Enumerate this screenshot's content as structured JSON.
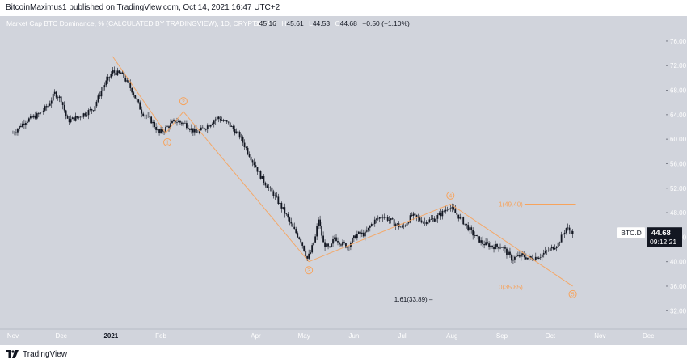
{
  "header": {
    "publish_line": "BitcoinMaximus1 published on TradingView.com, Oct 14, 2021 16:47 UTC+2"
  },
  "legend": {
    "title": "Market Cap BTC Dominance, % (CALCULATED BY TRADINGVIEW), 1D, CRYPTOCAP",
    "open_label": "O",
    "open": "45.16",
    "high_label": "H",
    "high": "45.61",
    "low_label": "L",
    "low": "44.53",
    "close_label": "C",
    "close": "44.68",
    "change": "−0.50 (−1.10%)"
  },
  "footer": {
    "brand": "TradingView"
  },
  "colors": {
    "background": "#d1d4dc",
    "candle": "#131722",
    "wave": "#f7a35c",
    "label_bg": "#131722"
  },
  "chart_data": {
    "type": "candlestick",
    "symbol": "BTC.D",
    "unit": "%",
    "ylim": [
      29.0,
      78.5
    ],
    "y_ticks": [
      "76.00",
      "72.00",
      "68.00",
      "64.00",
      "60.00",
      "56.00",
      "52.00",
      "48.00",
      "44.00",
      "40.00",
      "36.00",
      "32.00"
    ],
    "x_ticks": [
      "Nov",
      "Dec",
      "2021",
      "Feb",
      "Apr",
      "May",
      "Jun",
      "Jul",
      "Aug",
      "Sep",
      "Oct",
      "Nov",
      "Dec"
    ],
    "x_tick_days": [
      0,
      30,
      61,
      92,
      151,
      181,
      212,
      242,
      273,
      304,
      334,
      365,
      395
    ],
    "x_range_days": [
      -4,
      406
    ],
    "price_trace": [
      [
        0,
        61.0
      ],
      [
        8,
        63.0
      ],
      [
        16,
        64.0
      ],
      [
        22,
        65.5
      ],
      [
        26,
        67.5
      ],
      [
        30,
        66.5
      ],
      [
        34,
        63.0
      ],
      [
        40,
        63.5
      ],
      [
        50,
        65.0
      ],
      [
        56,
        68.5
      ],
      [
        62,
        71.0
      ],
      [
        68,
        70.5
      ],
      [
        74,
        68.0
      ],
      [
        80,
        64.5
      ],
      [
        86,
        63.0
      ],
      [
        91,
        61.0
      ],
      [
        96,
        62.0
      ],
      [
        101,
        63.0
      ],
      [
        107,
        62.5
      ],
      [
        114,
        61.0
      ],
      [
        120,
        62.0
      ],
      [
        127,
        63.5
      ],
      [
        134,
        62.5
      ],
      [
        141,
        60.5
      ],
      [
        148,
        57.0
      ],
      [
        155,
        53.5
      ],
      [
        162,
        51.0
      ],
      [
        168,
        48.5
      ],
      [
        174,
        45.5
      ],
      [
        179,
        43.5
      ],
      [
        183,
        40.5
      ],
      [
        185,
        41.5
      ],
      [
        188,
        44.0
      ],
      [
        190,
        47.0
      ],
      [
        193,
        43.0
      ],
      [
        197,
        42.0
      ],
      [
        200,
        44.0
      ],
      [
        204,
        43.0
      ],
      [
        208,
        42.5
      ],
      [
        214,
        44.5
      ],
      [
        219,
        44.5
      ],
      [
        224,
        46.5
      ],
      [
        230,
        47.5
      ],
      [
        236,
        46.5
      ],
      [
        242,
        45.5
      ],
      [
        248,
        47.5
      ],
      [
        256,
        46.5
      ],
      [
        262,
        47.0
      ],
      [
        267,
        48.0
      ],
      [
        271,
        49.0
      ],
      [
        275,
        48.0
      ],
      [
        280,
        46.5
      ],
      [
        286,
        44.5
      ],
      [
        292,
        43.0
      ],
      [
        298,
        42.5
      ],
      [
        304,
        42.5
      ],
      [
        310,
        40.5
      ],
      [
        316,
        41.0
      ],
      [
        322,
        40.5
      ],
      [
        328,
        41.0
      ],
      [
        334,
        42.0
      ],
      [
        339,
        43.0
      ],
      [
        344,
        45.5
      ],
      [
        348,
        44.7
      ]
    ],
    "wave_path": [
      [
        62,
        73.5
      ],
      [
        95,
        61.0
      ],
      [
        106,
        64.5
      ],
      [
        184,
        40.0
      ],
      [
        272,
        49.4
      ],
      [
        348,
        36.0
      ]
    ],
    "wave_labels": [
      {
        "label": "1",
        "day": 96,
        "price": 59.5
      },
      {
        "label": "2",
        "day": 106,
        "price": 66.2
      },
      {
        "label": "3",
        "day": 184,
        "price": 38.6
      },
      {
        "label": "4",
        "day": 272,
        "price": 50.8
      },
      {
        "label": "5",
        "day": 348,
        "price": 34.7
      }
    ],
    "fib_levels": [
      {
        "text": "1(49.40)",
        "price": 49.4,
        "day_start": 318,
        "day_end": 350,
        "line": true
      },
      {
        "text": "0(35.85)",
        "price": 35.85,
        "day_start": 318,
        "day_end": 350,
        "line": false
      },
      {
        "text": "1.61(33.89) –",
        "price": 33.89,
        "day_start": 262,
        "day_end": 293,
        "line": false
      }
    ],
    "last_price": {
      "symbol": "BTC.D",
      "value": "44.68",
      "countdown": "09:12:21"
    }
  }
}
